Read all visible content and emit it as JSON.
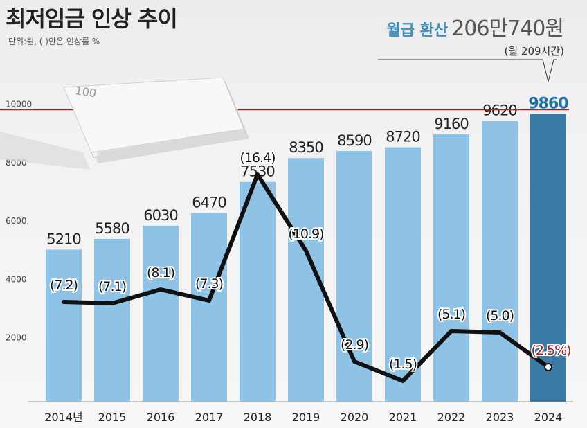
{
  "title": "최저임금 인상 추이",
  "unit_note": "단위:원, ( )안은 인상률 %",
  "monthly": {
    "label": "월급 환산",
    "value": "206만740원",
    "hours": "(월 209시간)"
  },
  "colors": {
    "bar": "#8ec3e6",
    "bar_highlight": "#3a7aa5",
    "line": "#111111",
    "reference_line": "#b22222",
    "label": "#222222",
    "highlight_text": "#1f6fa6",
    "rate_highlight_text": "#9b1c1c"
  },
  "chart_data": {
    "type": "bar",
    "categories": [
      "2014년",
      "2015",
      "2016",
      "2017",
      "2018",
      "2019",
      "2020",
      "2021",
      "2022",
      "2023",
      "2024"
    ],
    "series": [
      {
        "values": [
          5210,
          5580,
          6030,
          6470,
          7530,
          8350,
          8590,
          8720,
          9160,
          9620,
          9860
        ]
      },
      {
        "type": "line",
        "values": [
          7.2,
          7.1,
          8.1,
          7.3,
          16.4,
          10.9,
          2.9,
          1.5,
          5.1,
          5.0,
          2.5
        ]
      }
    ],
    "value_labels": [
      "5210",
      "5580",
      "6030",
      "6470",
      "7530",
      "8350",
      "8590",
      "8720",
      "9160",
      "9620",
      "9860"
    ],
    "rate_labels": [
      "(7.2)",
      "(7.1)",
      "(8.1)",
      "(7.3)",
      "(16.4)",
      "(10.9)",
      "(2.9)",
      "(1.5)",
      "(5.1)",
      "(5.0)",
      "(2.5%)"
    ],
    "y_ticks": [
      "2000",
      "4000",
      "6000",
      "8000",
      "10000"
    ],
    "ylim": [
      0,
      10300
    ],
    "rate_ylim": [
      0,
      22
    ],
    "reference_line": 10000,
    "highlight_index": 10,
    "legend": "none",
    "grid": false
  }
}
